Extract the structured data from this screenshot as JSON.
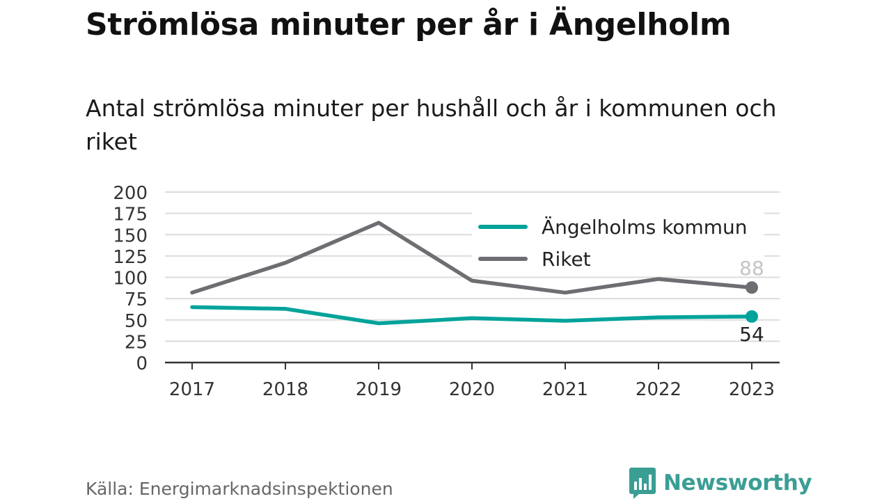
{
  "header": {
    "title": "Strömlösa minuter per år i Ängelholm",
    "subtitle": "Antal strömlösa minuter per hushåll och år i kommunen och riket"
  },
  "footer": {
    "source": "Källa: Energimarknadsinspektionen",
    "brand": "Newsworthy",
    "brand_icon": "newsworthy-logo-icon",
    "brand_color": "#3a9e94"
  },
  "chart_data": {
    "type": "line",
    "x": [
      "2017",
      "2018",
      "2019",
      "2020",
      "2021",
      "2022",
      "2023"
    ],
    "ylim": [
      0,
      200
    ],
    "yticks": [
      0,
      25,
      50,
      75,
      100,
      125,
      150,
      175,
      200
    ],
    "grid": true,
    "legend_position": "top-right",
    "series": [
      {
        "name": "Ängelholms kommun",
        "color": "#00a39a",
        "values": [
          65,
          63,
          46,
          52,
          49,
          53,
          54
        ],
        "end_label": "54"
      },
      {
        "name": "Riket",
        "color": "#6d6d72",
        "values": [
          82,
          117,
          164,
          96,
          82,
          98,
          88
        ],
        "end_label": "88"
      }
    ]
  }
}
